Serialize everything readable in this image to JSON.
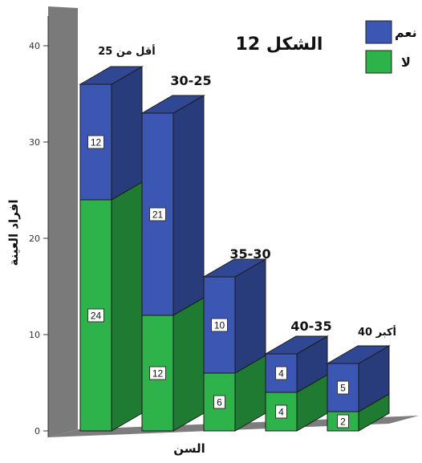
{
  "chart_data": {
    "type": "bar",
    "stacked": true,
    "title": "الشكل 12",
    "xlabel": "السن",
    "ylabel": "افراد العينة",
    "ylim": [
      0,
      40
    ],
    "yticks": [
      0,
      10,
      20,
      30,
      40
    ],
    "categories": [
      "أقل من 25",
      "30-25",
      "35-30",
      "40-35",
      "أكبر 40"
    ],
    "series": [
      {
        "name": "لا",
        "color": "#2db34a",
        "values": [
          24,
          12,
          6,
          4,
          2
        ]
      },
      {
        "name": "نعم",
        "color": "#3b57b3",
        "values": [
          12,
          21,
          10,
          4,
          5
        ]
      }
    ],
    "legend_position": "top-right",
    "grid": false
  }
}
